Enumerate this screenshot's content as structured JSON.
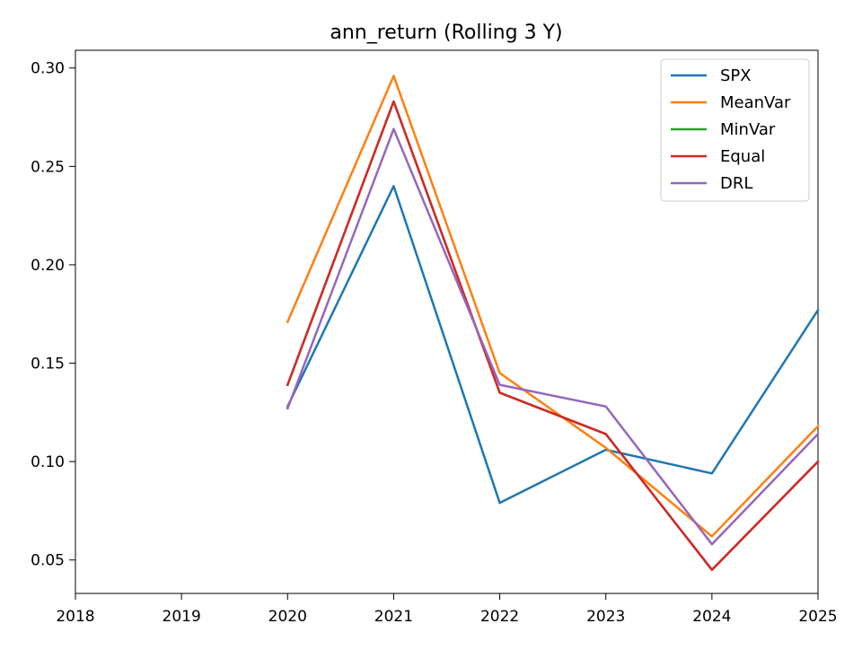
{
  "chart_data": {
    "type": "line",
    "title": "ann_return (Rolling 3 Y)",
    "xlabel": "",
    "ylabel": "",
    "xlim": [
      2018,
      2025
    ],
    "ylim": [
      0.033,
      0.309
    ],
    "xticks": [
      2018,
      2019,
      2020,
      2021,
      2022,
      2023,
      2024,
      2025
    ],
    "xtick_labels": [
      "2018",
      "2019",
      "2020",
      "2021",
      "2022",
      "2023",
      "2024",
      "2025"
    ],
    "yticks": [
      0.05,
      0.1,
      0.15,
      0.2,
      0.25,
      0.3
    ],
    "ytick_labels": [
      "0.05",
      "0.10",
      "0.15",
      "0.20",
      "0.25",
      "0.30"
    ],
    "grid": false,
    "legend_position": "top-right",
    "x": [
      2020,
      2021,
      2022,
      2023,
      2024,
      2025
    ],
    "series": [
      {
        "name": "SPX",
        "color": "#1f77b4",
        "values": [
          0.128,
          0.24,
          0.079,
          0.106,
          0.094,
          0.177
        ]
      },
      {
        "name": "MeanVar",
        "color": "#ff7f0e",
        "values": [
          0.171,
          0.296,
          0.145,
          0.107,
          0.062,
          0.118
        ]
      },
      {
        "name": "MinVar",
        "color": "#2ca02c",
        "values": [
          0.139,
          0.283,
          0.135,
          0.114,
          0.045,
          0.1
        ]
      },
      {
        "name": "Equal",
        "color": "#d62728",
        "values": [
          0.139,
          0.283,
          0.135,
          0.114,
          0.045,
          0.1
        ]
      },
      {
        "name": "DRL",
        "color": "#9467bd",
        "values": [
          0.127,
          0.269,
          0.139,
          0.128,
          0.058,
          0.114
        ]
      }
    ]
  }
}
